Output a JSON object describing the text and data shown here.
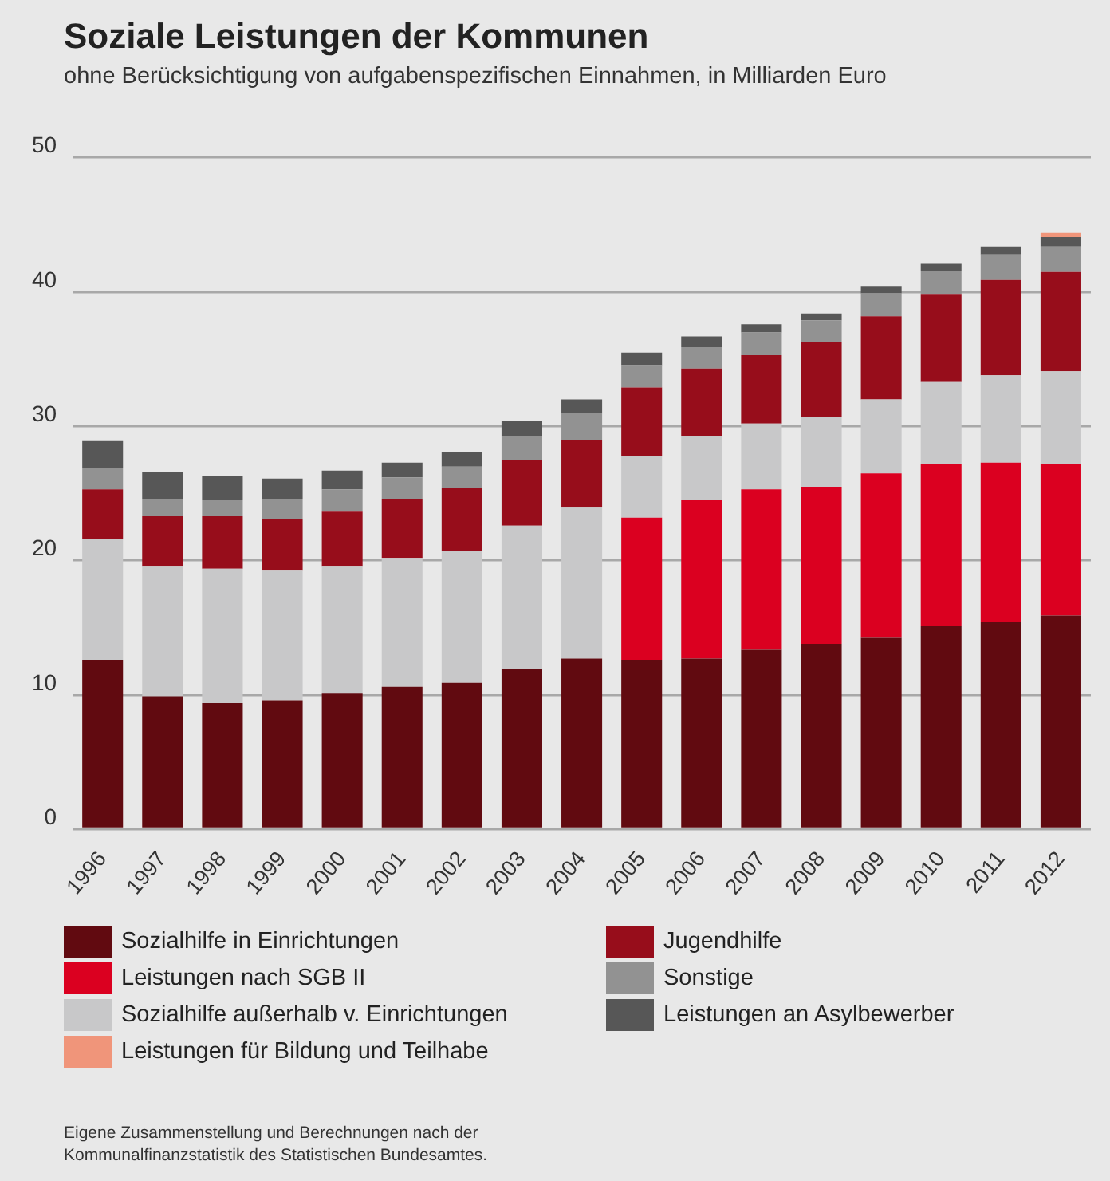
{
  "chart_data": {
    "type": "bar",
    "stacked": true,
    "title": "Soziale Leistungen der Kommunen",
    "subtitle": "ohne Berücksichtigung von aufgabenspezifischen Einnahmen, in Milliarden Euro",
    "categories": [
      "1996",
      "1997",
      "1998",
      "1999",
      "2000",
      "2001",
      "2002",
      "2003",
      "2004",
      "2005",
      "2006",
      "2007",
      "2008",
      "2009",
      "2010",
      "2011",
      "2012"
    ],
    "series": [
      {
        "name": "Sozialhilfe in Einrichtungen",
        "color": "#610a10",
        "values": [
          12.6,
          9.9,
          9.4,
          9.6,
          10.1,
          10.6,
          10.9,
          11.9,
          12.7,
          12.6,
          12.7,
          13.4,
          13.8,
          14.3,
          15.1,
          15.4,
          15.9
        ]
      },
      {
        "name": "Leistungen nach SGB II",
        "color": "#db0020",
        "values": [
          null,
          null,
          null,
          null,
          null,
          null,
          null,
          null,
          null,
          10.6,
          11.8,
          11.9,
          11.7,
          12.2,
          12.1,
          11.9,
          11.3
        ]
      },
      {
        "name": "Sozialhilfe außerhalb v. Einrichtungen",
        "color": "#c8c8c9",
        "values": [
          9.0,
          9.7,
          10.0,
          9.7,
          9.5,
          9.6,
          9.8,
          10.7,
          11.3,
          4.6,
          4.8,
          4.9,
          5.2,
          5.5,
          6.1,
          6.5,
          6.9
        ]
      },
      {
        "name": "Jugendhilfe",
        "color": "#970d1b",
        "values": [
          3.7,
          3.7,
          3.9,
          3.8,
          4.1,
          4.4,
          4.7,
          4.9,
          5.0,
          5.1,
          5.0,
          5.1,
          5.6,
          6.2,
          6.5,
          7.1,
          7.4
        ]
      },
      {
        "name": "Sonstige",
        "color": "#929292",
        "values": [
          1.6,
          1.3,
          1.2,
          1.5,
          1.6,
          1.6,
          1.6,
          1.8,
          2.0,
          1.6,
          1.6,
          1.7,
          1.6,
          1.7,
          1.8,
          1.9,
          1.9
        ]
      },
      {
        "name": "Leistungen an Asylbewerber",
        "color": "#575757",
        "values": [
          2.0,
          2.0,
          1.8,
          1.5,
          1.4,
          1.1,
          1.1,
          1.1,
          1.0,
          1.0,
          0.8,
          0.6,
          0.5,
          0.5,
          0.5,
          0.6,
          0.7
        ]
      },
      {
        "name": "Leistungen für Bildung und Teilhabe",
        "color": "#f0957a",
        "values": [
          null,
          null,
          null,
          null,
          null,
          null,
          null,
          null,
          null,
          null,
          null,
          null,
          null,
          null,
          null,
          null,
          0.3
        ]
      }
    ],
    "ylim": [
      0,
      50
    ],
    "yticks": [
      0,
      10,
      20,
      30,
      40,
      50
    ],
    "grid": "y",
    "legend": "bottom",
    "annotations": [
      "Eigene Zusammenstellung und Berechnungen nach der Kommunalfinanzstatistik des Statistischen Bundesamtes."
    ]
  }
}
